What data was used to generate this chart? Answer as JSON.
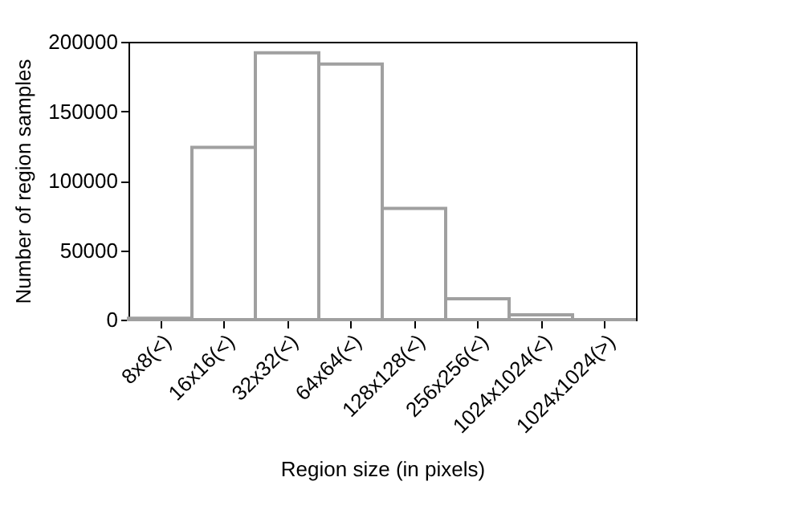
{
  "chart_data": {
    "type": "bar",
    "xlabel": "Region size (in pixels)",
    "ylabel": "Number of region samples",
    "categories": [
      "8x8(<)",
      "16x16(<)",
      "32x32(<)",
      "64x64(<)",
      "128x128(<)",
      "256x256(<)",
      "1024x1024(<)",
      "1024x1024(>)"
    ],
    "values": [
      1000,
      124000,
      192000,
      184000,
      80000,
      15000,
      3500,
      0
    ],
    "color": "#a0a0a0",
    "ylim": [
      0,
      200000
    ],
    "yticks": [
      0,
      50000,
      100000,
      150000,
      200000
    ],
    "grid": false
  }
}
